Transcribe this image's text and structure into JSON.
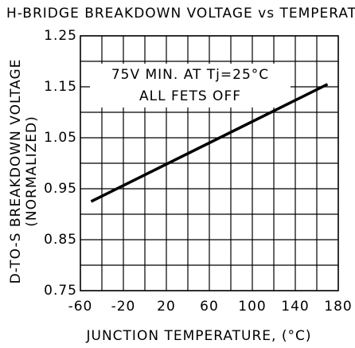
{
  "chart_data": {
    "type": "line",
    "title": "H-BRIDGE BREAKDOWN VOLTAGE vs TEMPERATURE",
    "x_label": "JUNCTION TEMPERATURE, (°C)",
    "y_label": "D-TO-S BREAKDOWN VOLTAGE",
    "y_label_sub": "(NORMALIZED)",
    "annotations": [
      "75V MIN. AT Tj=25°C",
      "ALL FETS OFF"
    ],
    "x": [
      -50,
      170
    ],
    "series": [
      {
        "color": "#000000",
        "values": [
          0.925,
          1.155
        ]
      }
    ],
    "xlim": [
      -60,
      180
    ],
    "xticks": [
      -60,
      -20,
      20,
      60,
      100,
      140,
      180
    ],
    "ylim": [
      0.75,
      1.25
    ],
    "yticks": [
      0.75,
      0.85,
      0.95,
      1.05,
      1.15,
      1.25
    ],
    "grid": true
  }
}
